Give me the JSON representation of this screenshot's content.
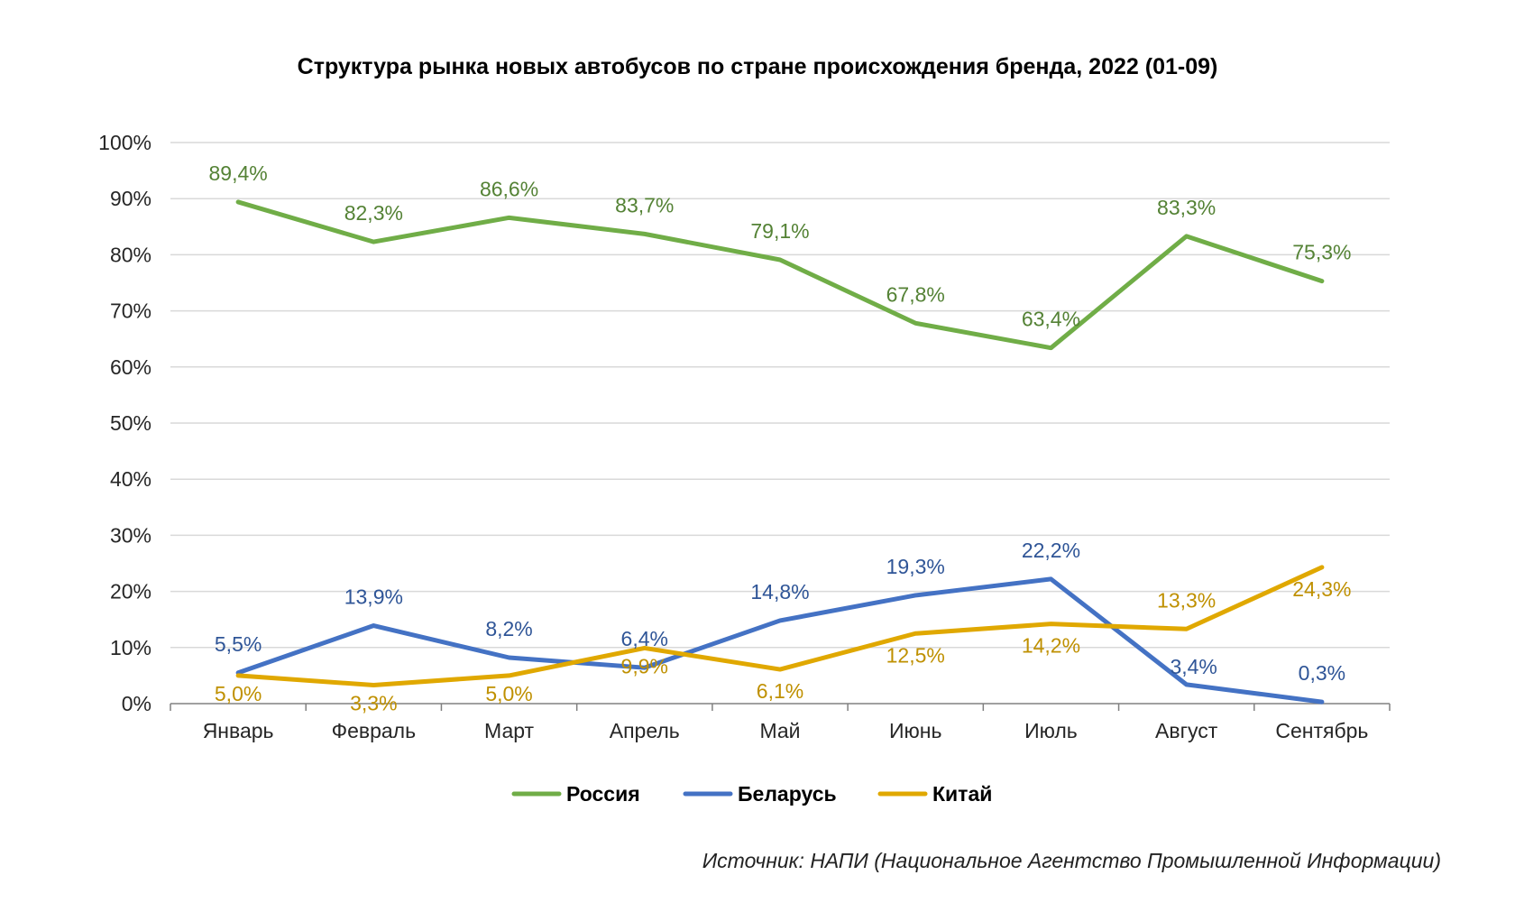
{
  "chart_data": {
    "type": "line",
    "title": "Структура рынка новых автобусов по стране происхождения бренда, 2022 (01-09)",
    "categories": [
      "Январь",
      "Февраль",
      "Март",
      "Апрель",
      "Май",
      "Июнь",
      "Июль",
      "Август",
      "Сентябрь"
    ],
    "ylim": [
      0,
      100
    ],
    "yticks": [
      "0%",
      "10%",
      "20%",
      "30%",
      "40%",
      "50%",
      "60%",
      "70%",
      "80%",
      "90%",
      "100%"
    ],
    "grid": true,
    "legend_position": "bottom",
    "series": [
      {
        "name": "Россия",
        "color": "#70ad47",
        "values": [
          89.4,
          82.3,
          86.6,
          83.7,
          79.1,
          67.8,
          63.4,
          83.3,
          75.3
        ],
        "labels": [
          "89,4%",
          "82,3%",
          "86,6%",
          "83,7%",
          "79,1%",
          "67,8%",
          "63,4%",
          "83,3%",
          "75,3%"
        ]
      },
      {
        "name": "Беларусь",
        "color": "#4472c4",
        "values": [
          5.5,
          13.9,
          8.2,
          6.4,
          14.8,
          19.3,
          22.2,
          3.4,
          0.3
        ],
        "labels": [
          "5,5%",
          "13,9%",
          "8,2%",
          "6,4%",
          "14,8%",
          "19,3%",
          "22,2%",
          "3,4%",
          "0,3%"
        ]
      },
      {
        "name": "Китай",
        "color": "#e0a800",
        "values": [
          5.0,
          3.3,
          5.0,
          9.9,
          6.1,
          12.5,
          14.2,
          13.3,
          24.3
        ],
        "labels": [
          "5,0%",
          "3,3%",
          "5,0%",
          "9,9%",
          "6,1%",
          "12,5%",
          "14,2%",
          "13,3%",
          "24,3%"
        ]
      }
    ]
  },
  "source": "Источник: НАПИ (Национальное Агентство Промышленной Информации)"
}
